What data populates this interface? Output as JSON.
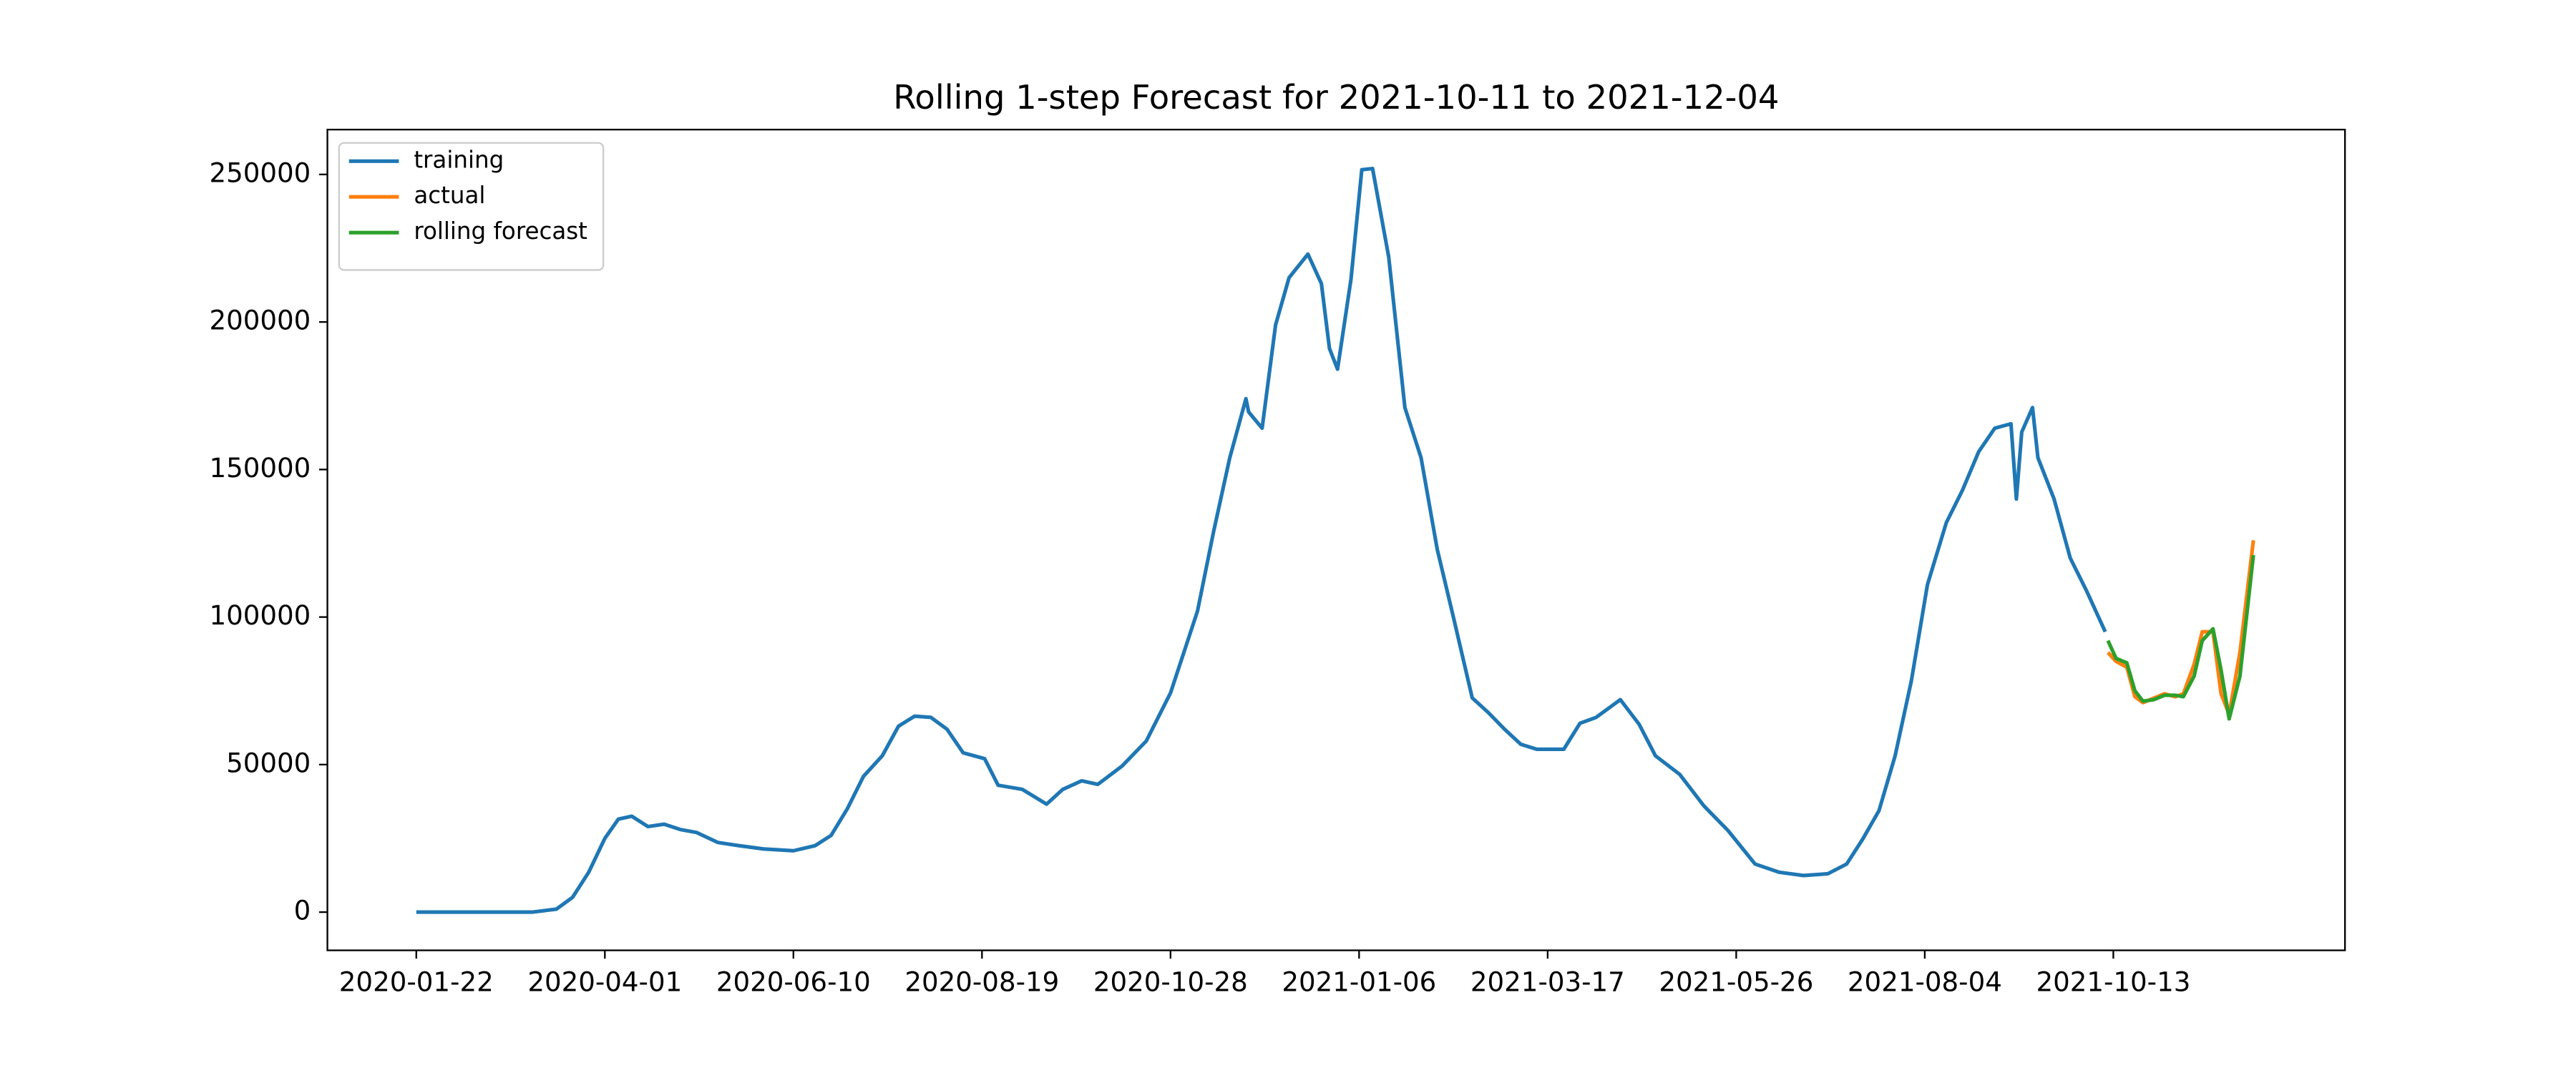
{
  "chart_data": {
    "type": "line",
    "title": "Rolling 1-step Forecast for 2021-10-11 to 2021-12-04",
    "xlim": [
      "2019-12-20",
      "2022-01-07"
    ],
    "xticks": [
      "2020-01-22",
      "2020-04-01",
      "2020-06-10",
      "2020-08-19",
      "2020-10-28",
      "2021-01-06",
      "2021-03-17",
      "2021-05-26",
      "2021-08-04",
      "2021-10-13"
    ],
    "ylim": [
      -12950,
      265200
    ],
    "yticks": [
      0,
      50000,
      100000,
      150000,
      200000,
      250000
    ],
    "legend": "upper left",
    "series": [
      {
        "name": "training",
        "color": "#1f77b4",
        "x": [
          "2020-01-22",
          "2020-03-05",
          "2020-03-14",
          "2020-03-20",
          "2020-03-26",
          "2020-04-01",
          "2020-04-06",
          "2020-04-11",
          "2020-04-17",
          "2020-04-23",
          "2020-04-29",
          "2020-05-05",
          "2020-05-13",
          "2020-05-21",
          "2020-05-30",
          "2020-06-10",
          "2020-06-18",
          "2020-06-24",
          "2020-06-30",
          "2020-07-06",
          "2020-07-13",
          "2020-07-19",
          "2020-07-25",
          "2020-07-31",
          "2020-08-06",
          "2020-08-12",
          "2020-08-20",
          "2020-08-25",
          "2020-09-03",
          "2020-09-12",
          "2020-09-18",
          "2020-09-25",
          "2020-10-01",
          "2020-10-10",
          "2020-10-19",
          "2020-10-28",
          "2020-11-07",
          "2020-11-13",
          "2020-11-19",
          "2020-11-25",
          "2020-11-26",
          "2020-12-01",
          "2020-12-06",
          "2020-12-11",
          "2020-12-18",
          "2020-12-23",
          "2020-12-26",
          "2020-12-29",
          "2021-01-03",
          "2021-01-07",
          "2021-01-11",
          "2021-01-17",
          "2021-01-23",
          "2021-01-29",
          "2021-02-04",
          "2021-02-10",
          "2021-02-17",
          "2021-02-23",
          "2021-03-01",
          "2021-03-07",
          "2021-03-13",
          "2021-03-23",
          "2021-03-29",
          "2021-04-04",
          "2021-04-13",
          "2021-04-20",
          "2021-04-26",
          "2021-05-05",
          "2021-05-14",
          "2021-05-23",
          "2021-06-02",
          "2021-06-11",
          "2021-06-20",
          "2021-06-29",
          "2021-07-06",
          "2021-07-12",
          "2021-07-18",
          "2021-07-24",
          "2021-07-30",
          "2021-08-05",
          "2021-08-12",
          "2021-08-18",
          "2021-08-24",
          "2021-08-30",
          "2021-09-05",
          "2021-09-07",
          "2021-09-09",
          "2021-09-13",
          "2021-09-15",
          "2021-09-21",
          "2021-09-27",
          "2021-10-03",
          "2021-10-10"
        ],
        "values": [
          0,
          0,
          1000,
          5000,
          13500,
          25000,
          31500,
          32500,
          29000,
          29800,
          28000,
          27000,
          23600,
          22500,
          21400,
          20800,
          22500,
          26000,
          35000,
          46000,
          53000,
          63000,
          66400,
          66000,
          62000,
          54000,
          52000,
          43000,
          41600,
          36600,
          41600,
          44500,
          43300,
          49500,
          58000,
          74300,
          102000,
          129000,
          154000,
          174000,
          169500,
          164000,
          199000,
          215000,
          223000,
          213000,
          191000,
          184000,
          214500,
          251600,
          252000,
          222000,
          171000,
          154000,
          123000,
          100000,
          72600,
          67600,
          62000,
          56900,
          55200,
          55200,
          64000,
          66000,
          72000,
          63600,
          53000,
          46700,
          36000,
          27600,
          16300,
          13500,
          12400,
          13000,
          16300,
          24800,
          34400,
          53000,
          78300,
          111000,
          132000,
          143000,
          156000,
          164000,
          165500,
          140000,
          162700,
          171000,
          154000,
          140000,
          120000,
          109000,
          95000
        ]
      },
      {
        "name": "actual",
        "color": "#ff7f0e",
        "x": [
          "2021-10-11",
          "2021-10-14",
          "2021-10-18",
          "2021-10-21",
          "2021-10-24",
          "2021-10-28",
          "2021-11-01",
          "2021-11-05",
          "2021-11-08",
          "2021-11-12",
          "2021-11-15",
          "2021-11-19",
          "2021-11-22",
          "2021-11-25",
          "2021-11-29",
          "2021-12-04"
        ],
        "values": [
          88000,
          85000,
          83000,
          73000,
          71000,
          72500,
          74000,
          73000,
          74000,
          84000,
          95000,
          95000,
          74000,
          67000,
          88000,
          126000
        ]
      },
      {
        "name": "rolling forecast",
        "color": "#2ca02c",
        "x": [
          "2021-10-11",
          "2021-10-14",
          "2021-10-18",
          "2021-10-21",
          "2021-10-24",
          "2021-10-28",
          "2021-11-01",
          "2021-11-05",
          "2021-11-08",
          "2021-11-12",
          "2021-11-15",
          "2021-11-19",
          "2021-11-22",
          "2021-11-25",
          "2021-11-29",
          "2021-12-04"
        ],
        "values": [
          92000,
          86000,
          84500,
          75000,
          71500,
          72000,
          73500,
          73500,
          73000,
          80000,
          92000,
          96000,
          82000,
          65500,
          80000,
          121000
        ]
      }
    ]
  }
}
